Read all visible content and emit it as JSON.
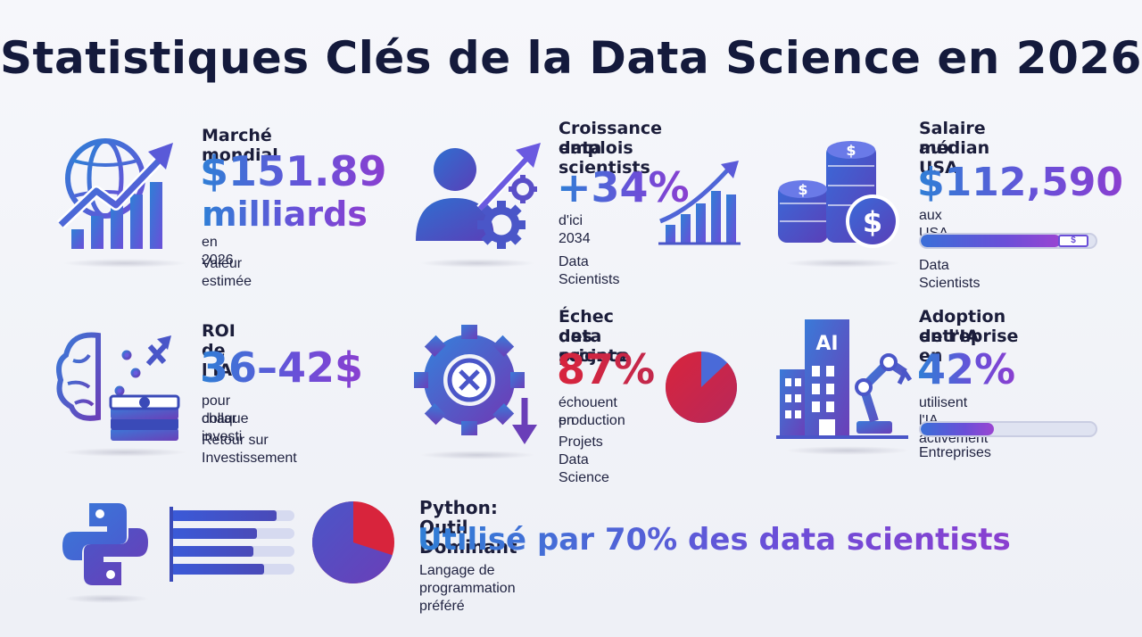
{
  "title": "Statistiques Clés de la Data Science en 2026",
  "colors": {
    "blue": "#2f7fd6",
    "purple": "#7a45d6",
    "red": "#d8243c",
    "dark": "#141a3c"
  },
  "cards": {
    "market": {
      "icon": "globe-growth-chart-icon",
      "label": "Marché mondial",
      "value_line1": "$151.89",
      "value_line2": "milliards",
      "sub1": "en 2026",
      "sub2": "Valeur estimée"
    },
    "jobs": {
      "icon": "person-gears-growth-icon",
      "label_line1": "Croissance emplois",
      "label_line2": "data scientists",
      "value": "+34%",
      "sub1": "d'ici 2034",
      "sub2": "Data Scientists"
    },
    "salary": {
      "icon": "coin-stacks-dollar-icon",
      "label_line1": "Salaire médian",
      "label_line2": "aux USA",
      "value": "$112,590",
      "sub1": "aux USA",
      "sub2": "Data Scientists",
      "bar_fill": 0.8
    },
    "roi": {
      "icon": "brain-money-icon",
      "label": "ROI de l'IA",
      "value": "36–42$",
      "sub1": "pour chaque",
      "sub2": "dollar investi",
      "sub3": "Retour sur Investissement"
    },
    "failure": {
      "icon": "gear-x-down-icon",
      "label_line1": "Échec des projets",
      "label_line2": "data science",
      "value": "87%",
      "sub1": "échouent en",
      "sub2": "production",
      "sub3": "Projets Data Science",
      "pie_fraction": 0.87
    },
    "adoption": {
      "icon": "ai-building-robot-arm-icon",
      "icon_text": "AI",
      "label_line1": "Adoption de l'IA en",
      "label_line2": "entreprise",
      "value": "42%",
      "sub1": "utilisent l'IA activement",
      "sub2": "Entreprises",
      "bar_fill": 0.42
    }
  },
  "python": {
    "icon": "python-logo-icon",
    "label": "Python: Outil Dominant",
    "value": "Utilisé par 70% des data scientists",
    "sub": "Langage de programmation préféré",
    "pie_fraction": 0.7
  }
}
